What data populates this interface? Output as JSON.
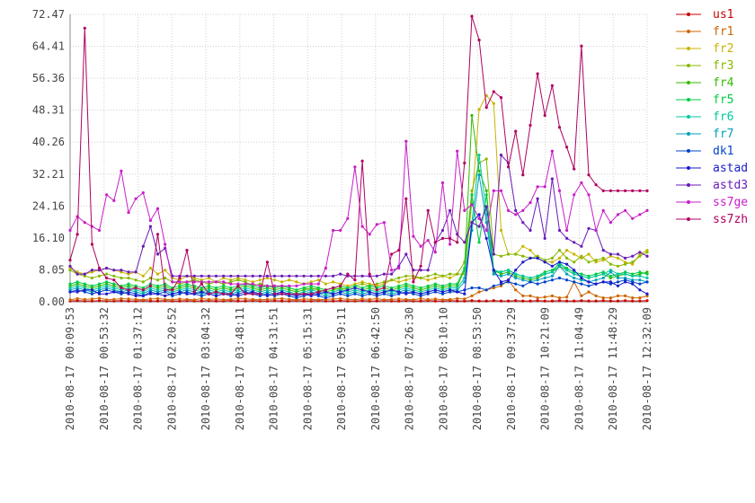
{
  "chart_data": {
    "type": "line",
    "title": "",
    "xlabel": "",
    "ylabel": "",
    "ylim": [
      0,
      72.47
    ],
    "yticks": [
      "0.00",
      "8.05",
      "16.10",
      "24.16",
      "32.21",
      "40.26",
      "48.31",
      "56.36",
      "64.41",
      "72.47"
    ],
    "xticks": [
      "2010-08-17 00:09:53",
      "2010-08-17 00:53:32",
      "2010-08-17 01:37:12",
      "2010-08-17 02:20:52",
      "2010-08-17 03:04:32",
      "2010-08-17 03:48:11",
      "2010-08-17 04:31:51",
      "2010-08-17 05:15:31",
      "2010-08-17 05:59:11",
      "2010-08-17 06:42:50",
      "2010-08-17 07:26:30",
      "2010-08-17 08:10:10",
      "2010-08-17 08:53:50",
      "2010-08-17 09:37:29",
      "2010-08-17 10:21:09",
      "2010-08-17 11:04:49",
      "2010-08-17 11:48:29",
      "2010-08-17 12:32:09"
    ],
    "grid": true,
    "legend_position": "right",
    "n_points": 80,
    "series": [
      {
        "name": "us1",
        "color": "#cc0000",
        "values": [
          0.2,
          0.3,
          0.2,
          0.2,
          0.3,
          0.2,
          0.2,
          0.3,
          0.2,
          0.2,
          0.3,
          0.2,
          0.2,
          0.3,
          0.2,
          0.2,
          0.3,
          0.2,
          0.2,
          0.3,
          0.2,
          0.2,
          0.3,
          0.2,
          0.2,
          0.3,
          0.2,
          0.2,
          0.3,
          0.2,
          0.2,
          0.3,
          0.2,
          0.2,
          0.3,
          0.2,
          0.2,
          0.3,
          0.2,
          0.2,
          0.3,
          0.2,
          0.2,
          0.3,
          0.2,
          0.2,
          0.3,
          0.2,
          0.2,
          0.3,
          0.2,
          0.2,
          0.3,
          0.2,
          0.2,
          0.3,
          0.2,
          0.2,
          0.3,
          0.2,
          0.2,
          0.3,
          0.2,
          0.2,
          0.3,
          0.2,
          0.2,
          0.3,
          0.2,
          0.2,
          0.3,
          0.2,
          0.2,
          0.3,
          0.2,
          0.2,
          0.3,
          0.2,
          0.2,
          0.3
        ]
      },
      {
        "name": "fr1",
        "color": "#cc6600",
        "values": [
          0.5,
          0.8,
          0.6,
          0.7,
          0.9,
          0.5,
          0.6,
          0.8,
          0.7,
          0.6,
          0.5,
          0.7,
          0.8,
          0.6,
          0.5,
          0.7,
          0.6,
          0.5,
          0.8,
          0.6,
          0.7,
          0.5,
          0.6,
          0.8,
          0.7,
          0.6,
          0.5,
          0.6,
          0.7,
          0.8,
          0.6,
          0.5,
          0.7,
          0.6,
          0.5,
          0.6,
          0.7,
          0.8,
          0.6,
          0.5,
          0.7,
          0.6,
          0.8,
          0.5,
          0.6,
          0.7,
          0.6,
          0.5,
          0.8,
          0.6,
          0.7,
          0.5,
          0.6,
          0.8,
          0.7,
          1.5,
          2.5,
          3.0,
          3.5,
          4.0,
          5.5,
          3.0,
          1.5,
          1.5,
          1.0,
          1.2,
          1.5,
          1.0,
          1.2,
          5.0,
          1.5,
          2.5,
          1.5,
          1.0,
          1.0,
          1.5,
          1.5,
          1.0,
          1.0,
          1.5
        ]
      },
      {
        "name": "fr2",
        "color": "#c8b400",
        "values": [
          8.5,
          7.5,
          7.0,
          7.5,
          8.0,
          8.5,
          8.0,
          7.5,
          7.0,
          7.5,
          6.5,
          8.5,
          7.0,
          8.0,
          6.0,
          5.5,
          6.5,
          6.0,
          5.5,
          6.0,
          5.0,
          6.0,
          5.5,
          6.0,
          5.5,
          5.0,
          5.5,
          6.0,
          5.5,
          5.0,
          5.5,
          5.0,
          4.5,
          5.0,
          5.5,
          4.5,
          5.0,
          4.5,
          4.0,
          4.5,
          5.0,
          4.5,
          4.0,
          4.5,
          5.5,
          5.0,
          5.5,
          6.0,
          6.0,
          5.5,
          6.0,
          6.5,
          6.0,
          7.0,
          7.0,
          25.0,
          48.5,
          52.0,
          50.0,
          18.0,
          12.0,
          12.0,
          14.0,
          13.0,
          11.0,
          10.0,
          10.0,
          11.0,
          13.0,
          12.0,
          11.0,
          12.0,
          10.0,
          10.5,
          11.5,
          11.0,
          10.0,
          9.5,
          12.0,
          13.0
        ]
      },
      {
        "name": "fr3",
        "color": "#88b800",
        "values": [
          8.0,
          7.0,
          6.5,
          6.0,
          6.5,
          7.0,
          6.5,
          6.0,
          6.0,
          5.5,
          5.0,
          6.0,
          5.5,
          6.0,
          5.0,
          4.5,
          5.0,
          5.5,
          5.0,
          4.5,
          5.0,
          4.5,
          5.0,
          5.5,
          5.0,
          4.0,
          4.5,
          4.0,
          3.5,
          4.0,
          3.5,
          3.0,
          3.5,
          3.0,
          3.5,
          3.0,
          3.5,
          3.0,
          3.5,
          4.0,
          4.5,
          4.0,
          4.5,
          5.0,
          5.5,
          6.0,
          6.5,
          6.5,
          6.0,
          6.5,
          7.0,
          6.5,
          7.0,
          7.0,
          10.0,
          28.0,
          35.0,
          36.0,
          12.0,
          11.5,
          12.0,
          12.0,
          11.5,
          11.0,
          11.5,
          10.5,
          11.0,
          13.0,
          11.0,
          10.0,
          11.5,
          10.0,
          10.5,
          11.0,
          9.5,
          9.0,
          9.5,
          10.0,
          11.5,
          12.5
        ]
      },
      {
        "name": "fr4",
        "color": "#33bb00",
        "values": [
          4.0,
          4.5,
          4.0,
          3.5,
          4.0,
          4.5,
          4.0,
          3.5,
          4.0,
          3.5,
          3.0,
          4.0,
          3.5,
          4.0,
          3.0,
          3.5,
          4.0,
          3.5,
          3.0,
          3.5,
          3.0,
          3.5,
          3.0,
          3.5,
          4.0,
          3.5,
          3.0,
          3.5,
          3.0,
          3.5,
          3.0,
          2.5,
          3.0,
          3.5,
          3.0,
          2.5,
          3.0,
          3.5,
          3.0,
          3.5,
          3.0,
          3.5,
          3.0,
          3.5,
          3.0,
          3.5,
          4.0,
          3.5,
          3.0,
          3.5,
          4.0,
          3.5,
          4.0,
          4.0,
          8.0,
          47.0,
          33.0,
          28.0,
          8.0,
          7.0,
          7.5,
          6.5,
          6.0,
          5.5,
          6.0,
          7.0,
          7.5,
          9.0,
          8.0,
          7.0,
          6.5,
          6.0,
          6.5,
          7.0,
          6.0,
          6.5,
          7.0,
          6.5,
          7.0,
          7.5
        ]
      },
      {
        "name": "fr5",
        "color": "#00cc44",
        "values": [
          4.5,
          5.0,
          4.5,
          4.0,
          4.5,
          5.0,
          4.5,
          4.0,
          4.5,
          4.0,
          3.5,
          4.5,
          4.0,
          4.5,
          3.5,
          4.0,
          4.5,
          4.0,
          3.5,
          4.0,
          3.5,
          4.0,
          3.5,
          4.0,
          4.5,
          4.0,
          3.5,
          4.0,
          3.5,
          4.0,
          3.5,
          3.0,
          3.5,
          4.0,
          3.5,
          3.0,
          3.5,
          4.0,
          3.5,
          4.0,
          3.5,
          4.0,
          3.5,
          4.0,
          3.5,
          4.0,
          4.5,
          4.0,
          3.5,
          4.0,
          4.5,
          4.0,
          4.5,
          4.5,
          8.5,
          27.0,
          15.0,
          27.0,
          7.5,
          7.5,
          8.0,
          7.0,
          6.5,
          6.0,
          6.5,
          7.5,
          8.0,
          9.5,
          8.5,
          7.5,
          7.0,
          6.5,
          7.0,
          7.5,
          6.5,
          7.0,
          7.5,
          7.0,
          7.5,
          7.0
        ]
      },
      {
        "name": "fr6",
        "color": "#00c8a0",
        "values": [
          3.5,
          4.0,
          3.5,
          3.0,
          3.5,
          4.0,
          3.5,
          3.0,
          3.5,
          3.0,
          2.5,
          3.5,
          3.0,
          3.5,
          2.5,
          3.0,
          3.5,
          3.0,
          2.5,
          3.0,
          2.5,
          3.0,
          2.5,
          3.0,
          3.5,
          3.0,
          2.5,
          3.0,
          2.5,
          3.0,
          2.5,
          2.0,
          2.5,
          3.0,
          2.5,
          2.0,
          2.5,
          3.0,
          2.5,
          3.0,
          2.5,
          3.0,
          2.5,
          3.0,
          2.5,
          3.0,
          3.5,
          3.0,
          2.5,
          3.0,
          3.5,
          3.0,
          3.5,
          3.5,
          6.0,
          20.0,
          37.0,
          22.0,
          8.0,
          7.5,
          8.0,
          7.0,
          6.5,
          6.0,
          6.5,
          7.0,
          7.5,
          10.0,
          8.0,
          7.0,
          6.5,
          6.0,
          6.5,
          7.0,
          8.0,
          7.0,
          7.0,
          6.5,
          6.5,
          6.0
        ]
      },
      {
        "name": "fr7",
        "color": "#00a0b8",
        "values": [
          3.0,
          3.5,
          3.0,
          2.5,
          3.0,
          3.5,
          3.0,
          2.5,
          3.0,
          2.5,
          2.0,
          3.0,
          2.5,
          3.0,
          2.0,
          2.5,
          3.0,
          2.5,
          2.0,
          2.5,
          2.0,
          2.5,
          2.0,
          2.5,
          3.0,
          2.5,
          2.0,
          2.5,
          2.0,
          2.5,
          2.0,
          1.5,
          2.0,
          2.5,
          2.0,
          1.5,
          2.0,
          2.5,
          2.0,
          2.5,
          2.0,
          2.5,
          2.0,
          2.5,
          2.0,
          2.5,
          3.0,
          2.5,
          2.0,
          2.5,
          3.0,
          2.5,
          3.0,
          3.0,
          5.0,
          18.0,
          32.0,
          20.0,
          7.0,
          6.5,
          7.0,
          6.0,
          5.5,
          5.0,
          5.5,
          6.0,
          6.5,
          9.0,
          7.0,
          6.0,
          5.5,
          5.0,
          5.5,
          6.0,
          7.5,
          6.0,
          6.0,
          5.5,
          5.5,
          5.0
        ]
      },
      {
        "name": "dk1",
        "color": "#0044cc",
        "values": [
          2.5,
          3.0,
          2.5,
          2.0,
          2.5,
          3.0,
          2.5,
          2.0,
          2.5,
          2.0,
          1.5,
          2.5,
          2.0,
          2.5,
          1.5,
          2.0,
          2.5,
          2.0,
          1.5,
          2.0,
          1.5,
          2.0,
          1.5,
          2.0,
          2.5,
          2.0,
          1.5,
          2.0,
          1.5,
          2.0,
          1.5,
          1.0,
          1.5,
          2.0,
          1.5,
          1.0,
          1.5,
          2.0,
          1.5,
          2.0,
          1.5,
          2.0,
          1.5,
          2.0,
          1.5,
          2.0,
          2.5,
          2.0,
          1.5,
          2.0,
          2.5,
          2.0,
          2.5,
          2.5,
          3.0,
          3.5,
          3.5,
          3.0,
          4.0,
          4.5,
          5.0,
          4.5,
          4.0,
          5.0,
          4.5,
          5.0,
          5.5,
          6.0,
          5.5,
          5.0,
          4.5,
          4.0,
          4.5,
          5.0,
          4.5,
          5.0,
          5.5,
          5.0,
          4.5,
          5.0
        ]
      },
      {
        "name": "astad",
        "color": "#1a1acc",
        "values": [
          2.5,
          2.5,
          3.0,
          3.0,
          2.0,
          2.0,
          2.5,
          2.5,
          2.0,
          1.5,
          1.5,
          2.0,
          2.0,
          1.5,
          2.0,
          2.5,
          2.0,
          2.0,
          2.5,
          2.0,
          1.5,
          2.0,
          2.0,
          1.5,
          2.0,
          2.5,
          2.0,
          1.5,
          2.0,
          2.5,
          2.0,
          1.5,
          2.0,
          1.5,
          2.0,
          2.5,
          2.0,
          2.5,
          3.0,
          3.5,
          3.0,
          2.5,
          2.0,
          2.5,
          3.0,
          2.5,
          2.0,
          2.5,
          2.0,
          2.5,
          3.0,
          2.5,
          3.0,
          2.5,
          2.0,
          20.0,
          22.0,
          16.0,
          8.0,
          5.0,
          5.5,
          8.0,
          10.0,
          11.0,
          11.0,
          10.0,
          9.0,
          10.0,
          9.5,
          8.0,
          6.0,
          5.0,
          4.5,
          5.0,
          5.0,
          4.0,
          5.0,
          4.5,
          3.0,
          2.0
        ]
      },
      {
        "name": "astd3",
        "color": "#6a1ab8",
        "values": [
          9.0,
          7.0,
          7.0,
          8.0,
          8.0,
          8.5,
          8.0,
          8.0,
          7.5,
          7.5,
          14.0,
          19.0,
          12.0,
          13.5,
          6.5,
          6.5,
          6.5,
          6.5,
          6.5,
          6.5,
          6.5,
          6.5,
          6.5,
          6.5,
          6.5,
          6.5,
          6.5,
          6.5,
          6.5,
          6.5,
          6.5,
          6.5,
          6.5,
          6.5,
          6.5,
          6.5,
          6.5,
          7.0,
          6.5,
          6.5,
          6.5,
          6.5,
          6.5,
          7.0,
          7.0,
          9.0,
          12.0,
          8.0,
          8.0,
          8.0,
          15.0,
          18.0,
          23.0,
          17.0,
          15.0,
          20.0,
          19.0,
          24.0,
          12.0,
          37.0,
          35.0,
          23.0,
          20.0,
          18.0,
          26.0,
          16.0,
          31.0,
          18.0,
          16.0,
          15.0,
          14.0,
          18.5,
          18.0,
          13.0,
          12.0,
          12.0,
          11.0,
          11.5,
          12.5,
          11.5
        ]
      },
      {
        "name": "ss7ge",
        "color": "#c81ec8",
        "values": [
          18.0,
          21.5,
          20.0,
          19.0,
          18.0,
          27.0,
          25.5,
          33.0,
          22.5,
          26.0,
          27.5,
          20.5,
          23.5,
          14.5,
          5.0,
          5.0,
          5.0,
          5.0,
          5.0,
          5.0,
          5.0,
          5.0,
          4.5,
          4.5,
          4.5,
          4.5,
          4.0,
          4.0,
          4.0,
          4.0,
          4.0,
          4.0,
          4.5,
          4.5,
          4.5,
          8.5,
          18.0,
          18.0,
          21.0,
          34.0,
          19.0,
          17.0,
          19.5,
          20.0,
          8.0,
          8.5,
          40.5,
          16.5,
          14.0,
          15.5,
          12.5,
          30.0,
          14.5,
          38.0,
          23.0,
          24.5,
          21.0,
          18.0,
          28.0,
          28.0,
          23.0,
          22.0,
          23.0,
          25.0,
          29.0,
          29.0,
          38.0,
          28.0,
          18.0,
          27.0,
          30.0,
          27.0,
          18.0,
          23.0,
          20.0,
          22.0,
          23.0,
          21.0,
          22.0,
          23.0
        ]
      },
      {
        "name": "ss7zh",
        "color": "#b00060",
        "values": [
          10.5,
          17.0,
          69.0,
          14.5,
          8.5,
          6.0,
          5.5,
          3.5,
          3.0,
          3.5,
          3.0,
          4.0,
          17.0,
          3.0,
          3.0,
          6.0,
          13.0,
          2.5,
          4.5,
          2.0,
          2.5,
          2.0,
          2.0,
          4.0,
          2.0,
          2.0,
          2.0,
          10.0,
          2.0,
          2.0,
          2.0,
          2.0,
          2.0,
          2.0,
          2.5,
          3.0,
          3.5,
          4.0,
          7.0,
          5.5,
          35.5,
          7.0,
          3.0,
          3.5,
          12.0,
          13.0,
          26.0,
          5.0,
          9.0,
          23.0,
          15.0,
          16.0,
          16.0,
          15.0,
          35.0,
          72.0,
          66.0,
          49.0,
          53.0,
          51.5,
          34.0,
          43.0,
          32.0,
          44.5,
          57.5,
          47.0,
          54.5,
          44.0,
          39.0,
          33.5,
          64.5,
          32.0,
          29.5,
          28.0,
          28.0,
          28.0,
          28.0,
          28.0,
          28.0,
          28.0
        ]
      }
    ]
  }
}
